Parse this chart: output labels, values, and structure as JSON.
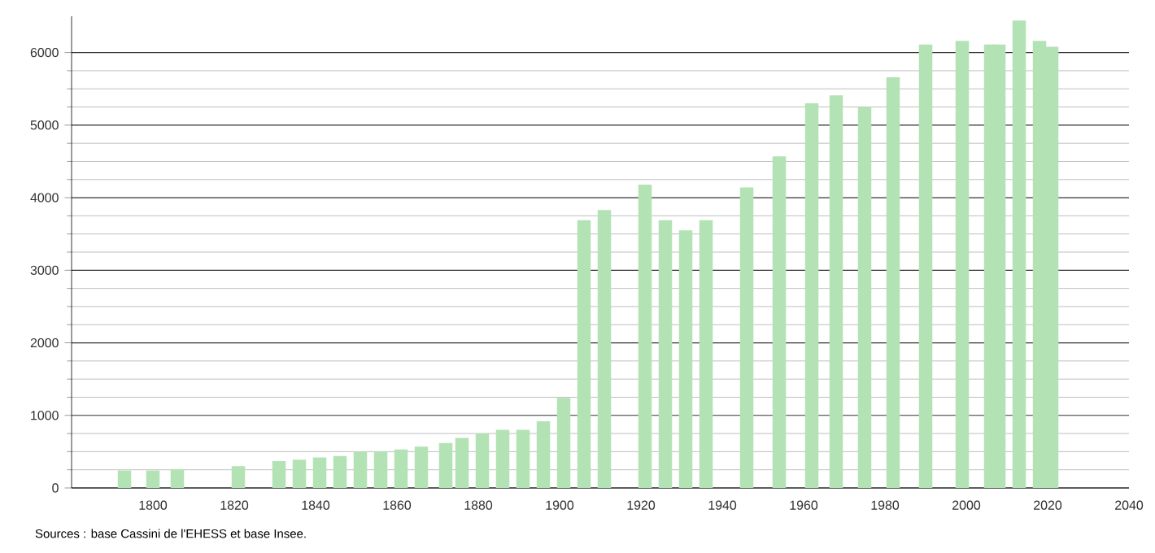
{
  "chart_data": {
    "type": "bar",
    "x": [
      1793,
      1800,
      1806,
      1821,
      1831,
      1836,
      1841,
      1846,
      1851,
      1856,
      1861,
      1866,
      1872,
      1876,
      1881,
      1886,
      1891,
      1896,
      1901,
      1906,
      1911,
      1921,
      1926,
      1931,
      1936,
      1946,
      1954,
      1962,
      1968,
      1975,
      1982,
      1990,
      1999,
      2006,
      2008,
      2013,
      2018,
      2021
    ],
    "values": [
      240,
      240,
      260,
      300,
      370,
      390,
      420,
      440,
      500,
      500,
      530,
      570,
      620,
      690,
      750,
      800,
      800,
      920,
      1240,
      3690,
      3830,
      4180,
      3690,
      3550,
      3690,
      4140,
      4570,
      5300,
      5410,
      5250,
      5660,
      6110,
      6160,
      6110,
      6110,
      6440,
      6160,
      6080
    ],
    "color": "#b3e3b5",
    "xlim": [
      1780,
      2040
    ],
    "xticks": [
      1800,
      1820,
      1840,
      1860,
      1880,
      1900,
      1920,
      1940,
      1960,
      1980,
      2000,
      2020,
      2040
    ],
    "ylim": [
      0,
      6500
    ],
    "yticks": [
      0,
      1000,
      2000,
      3000,
      4000,
      5000,
      6000
    ],
    "grid": "y",
    "annotations": [
      "Sources : base Cassini de l'EHESS et base Insee."
    ]
  }
}
